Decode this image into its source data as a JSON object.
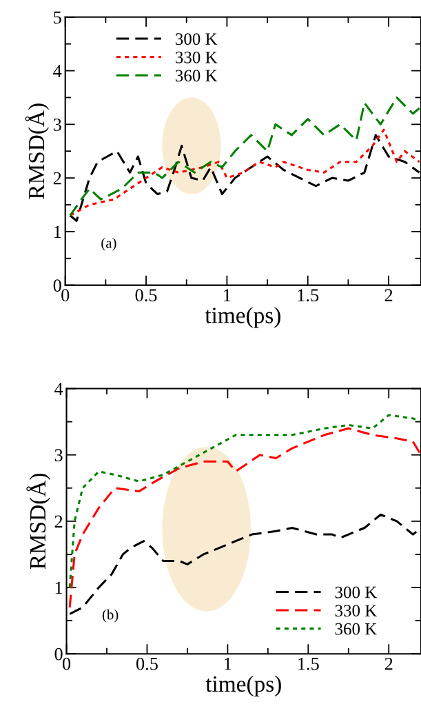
{
  "chart_data": [
    {
      "type": "line",
      "xlabel": "time(ps)",
      "ylabel": "RMSD(Å)",
      "xlim": [
        0,
        2.2
      ],
      "ylim": [
        0,
        5
      ],
      "xticks": [
        0,
        0.5,
        1,
        1.5,
        2
      ],
      "yticks": [
        0,
        1,
        2,
        3,
        4,
        5
      ],
      "legend": "top left",
      "grid": false,
      "annotations": [
        "(a)"
      ],
      "series": [
        {
          "name": "300 K",
          "color": "#000000",
          "line_style": "dashed",
          "x": [
            0.03,
            0.07,
            0.15,
            0.2,
            0.32,
            0.4,
            0.45,
            0.5,
            0.57,
            0.63,
            0.68,
            0.72,
            0.78,
            0.85,
            0.9,
            0.97,
            1.05,
            1.15,
            1.25,
            1.35,
            1.45,
            1.55,
            1.65,
            1.75,
            1.85,
            1.92,
            2.0,
            2.1,
            2.19
          ],
          "values": [
            1.3,
            1.2,
            2.0,
            2.3,
            2.5,
            2.1,
            2.4,
            1.9,
            1.7,
            1.75,
            2.2,
            2.6,
            2.0,
            1.95,
            2.2,
            1.7,
            2.0,
            2.2,
            2.4,
            2.15,
            2.0,
            1.85,
            2.0,
            1.95,
            2.1,
            2.8,
            2.4,
            2.3,
            2.1
          ]
        },
        {
          "name": "330 K",
          "color": "#ff0000",
          "line_style": "dotted",
          "x": [
            0.03,
            0.15,
            0.3,
            0.4,
            0.5,
            0.6,
            0.7,
            0.85,
            0.95,
            1.0,
            1.1,
            1.2,
            1.3,
            1.35,
            1.5,
            1.6,
            1.7,
            1.8,
            1.9,
            1.97,
            2.05,
            2.1,
            2.19
          ],
          "values": [
            1.3,
            1.5,
            1.6,
            1.8,
            2.0,
            2.2,
            2.1,
            2.2,
            2.3,
            2.0,
            2.1,
            2.3,
            2.2,
            2.3,
            2.15,
            2.1,
            2.3,
            2.3,
            2.6,
            2.9,
            2.3,
            2.5,
            2.3
          ]
        },
        {
          "name": "360 K",
          "color": "#008000",
          "line_style": "dashed",
          "x": [
            0.03,
            0.1,
            0.15,
            0.22,
            0.35,
            0.45,
            0.55,
            0.6,
            0.7,
            0.8,
            0.9,
            0.97,
            1.05,
            1.15,
            1.25,
            1.3,
            1.4,
            1.5,
            1.6,
            1.7,
            1.8,
            1.85,
            1.95,
            2.05,
            2.15,
            2.19
          ],
          "values": [
            1.3,
            1.6,
            1.8,
            1.6,
            1.8,
            2.1,
            2.1,
            2.0,
            2.3,
            2.1,
            2.3,
            2.2,
            2.5,
            2.8,
            2.5,
            3.0,
            2.8,
            3.1,
            2.8,
            3.0,
            2.7,
            3.4,
            3.0,
            3.5,
            3.2,
            3.3
          ]
        }
      ]
    },
    {
      "type": "line",
      "xlabel": "time(ps)",
      "ylabel": "RMSD(Å)",
      "xlim": [
        0,
        2.2
      ],
      "ylim": [
        0,
        4
      ],
      "xticks": [
        0,
        0.5,
        1,
        1.5,
        2
      ],
      "yticks": [
        0,
        1,
        2,
        3,
        4
      ],
      "legend": "bottom right",
      "grid": false,
      "annotations": [
        "(b)"
      ],
      "series": [
        {
          "name": "300 K",
          "color": "#000000",
          "line_style": "dashed",
          "x": [
            0.02,
            0.1,
            0.2,
            0.28,
            0.35,
            0.4,
            0.48,
            0.53,
            0.6,
            0.7,
            0.75,
            0.85,
            0.95,
            1.05,
            1.15,
            1.3,
            1.4,
            1.55,
            1.65,
            1.7,
            1.85,
            1.95,
            2.05,
            2.15,
            2.2
          ],
          "values": [
            0.6,
            0.7,
            1.0,
            1.2,
            1.5,
            1.6,
            1.7,
            1.6,
            1.4,
            1.4,
            1.35,
            1.5,
            1.6,
            1.7,
            1.8,
            1.85,
            1.9,
            1.8,
            1.8,
            1.75,
            1.9,
            2.1,
            2.0,
            1.8,
            1.9
          ]
        },
        {
          "name": "330 K",
          "color": "#ff0000",
          "line_style": "dashed",
          "x": [
            0.02,
            0.05,
            0.1,
            0.2,
            0.3,
            0.45,
            0.55,
            0.7,
            0.85,
            1.0,
            1.05,
            1.2,
            1.3,
            1.4,
            1.6,
            1.75,
            1.9,
            2.05,
            2.15,
            2.2
          ],
          "values": [
            0.7,
            1.5,
            1.8,
            2.2,
            2.5,
            2.45,
            2.6,
            2.8,
            2.9,
            2.9,
            2.75,
            3.0,
            2.95,
            3.1,
            3.3,
            3.4,
            3.3,
            3.25,
            3.2,
            3.0
          ]
        },
        {
          "name": "360 K",
          "color": "#008000",
          "line_style": "dotted",
          "x": [
            0.02,
            0.05,
            0.1,
            0.2,
            0.3,
            0.45,
            0.6,
            0.75,
            0.9,
            1.05,
            1.2,
            1.4,
            1.6,
            1.75,
            1.9,
            2.0,
            2.15,
            2.2
          ],
          "values": [
            1.0,
            2.0,
            2.5,
            2.75,
            2.7,
            2.6,
            2.7,
            2.9,
            3.1,
            3.3,
            3.3,
            3.3,
            3.4,
            3.45,
            3.4,
            3.6,
            3.55,
            3.5
          ]
        }
      ]
    }
  ]
}
